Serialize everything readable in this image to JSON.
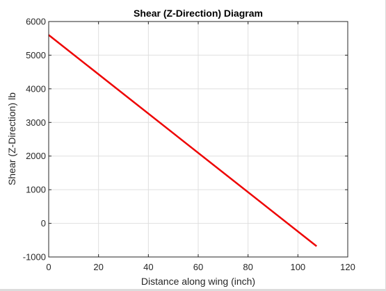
{
  "chart_data": {
    "type": "line",
    "title": "Shear (Z-Direction) Diagram",
    "xlabel": "Distance along wing (inch)",
    "ylabel": "Shear (Z-Direction) lb",
    "xlim": [
      0,
      120
    ],
    "ylim": [
      -1000,
      6000
    ],
    "xticks": [
      0,
      20,
      40,
      60,
      80,
      100,
      120
    ],
    "yticks": [
      -1000,
      0,
      1000,
      2000,
      3000,
      4000,
      5000,
      6000
    ],
    "xtick_labels": [
      "0",
      "20",
      "40",
      "60",
      "80",
      "100",
      "120"
    ],
    "ytick_labels": [
      "-1000",
      "0",
      "1000",
      "2000",
      "3000",
      "4000",
      "5000",
      "6000"
    ],
    "grid": true,
    "series": [
      {
        "color": "#ee0000",
        "x": [
          0,
          107.5
        ],
        "y": [
          5600,
          -680
        ]
      }
    ]
  }
}
